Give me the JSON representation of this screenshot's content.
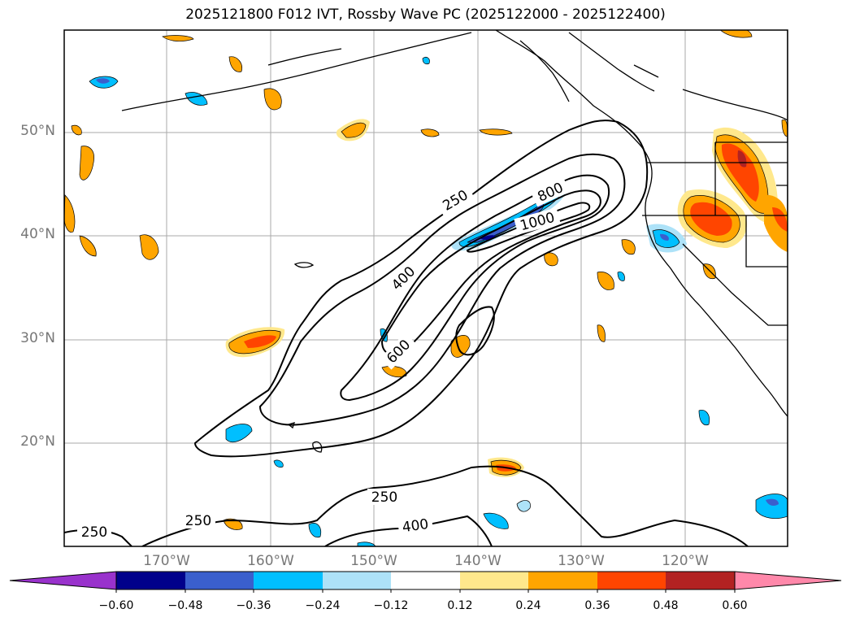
{
  "title": "2025121800 F012 IVT, Rossby Wave PC (2025122000 - 2025122400)",
  "lat_labels": [
    "50°N",
    "40°N",
    "30°N",
    "20°N"
  ],
  "lon_labels": [
    "170°W",
    "160°W",
    "150°W",
    "140°W",
    "130°W",
    "120°W"
  ],
  "contour_labels": {
    "c250_upper": "250",
    "c400": "400",
    "c600": "600",
    "c800": "800",
    "c1000": "1000",
    "c250_south": "250",
    "c250_southwest": "250",
    "c250_far_southwest": "250",
    "c400_south": "400"
  },
  "colorbar": {
    "tick_labels": [
      "−0.60",
      "−0.48",
      "−0.36",
      "−0.24",
      "−0.12",
      "0.12",
      "0.24",
      "0.36",
      "0.48",
      "0.60"
    ],
    "colors": [
      "#9932CC",
      "#00008B",
      "#3A5FCD",
      "#00BFFF",
      "#ADE2F8",
      "#FFFFFF",
      "#FFE88C",
      "#FFA500",
      "#FF4500",
      "#B22222",
      "#FF88AA"
    ]
  }
}
